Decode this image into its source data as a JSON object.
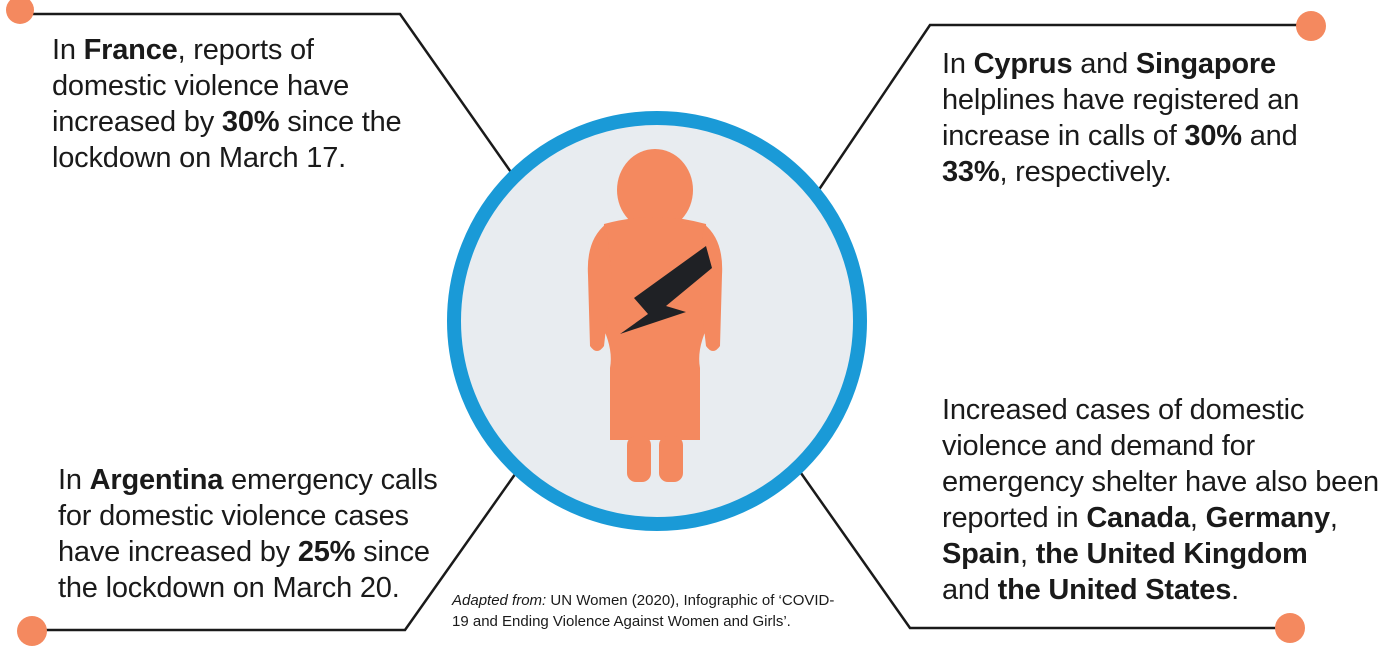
{
  "colors": {
    "connector_line": "#1a1a1a",
    "dot": "#f4895f",
    "ring": "#1a9ad7",
    "circle_fill": "#e8ecf0",
    "figure": "#f4895f",
    "bolt": "#1f2125"
  },
  "icons": {
    "figure": "woman-figure-icon",
    "bolt": "lightning-bolt-icon"
  },
  "blocks": {
    "france": {
      "l1_a": "In ",
      "l1_b": "France",
      "l1_c": ", reports of",
      "l2": "domestic violence have",
      "l3_a": "increased by ",
      "l3_b": "30%",
      "l3_c": " since the",
      "l4": "lockdown on March 17."
    },
    "cyprus": {
      "l1_a": "In ",
      "l1_b": "Cyprus",
      "l1_c": " and ",
      "l1_d": "Singapore",
      "l2": "helplines have registered an",
      "l3_a": "increase in calls of ",
      "l3_b": "30%",
      "l3_c": " and",
      "l4_a": "33%",
      "l4_b": ", respectively."
    },
    "argentina": {
      "l1_a": "In ",
      "l1_b": "Argentina",
      "l1_c": " emergency calls",
      "l2": "for domestic violence cases",
      "l3_a": "have increased by ",
      "l3_b": "25%",
      "l3_c": " since",
      "l4": "the lockdown on March 20."
    },
    "others": {
      "l1": "Increased cases of domestic",
      "l2": "violence and demand for",
      "l3": "emergency shelter have also been",
      "l4_a": "reported in ",
      "l4_b": "Canada",
      "l4_c": ", ",
      "l4_d": "Germany",
      "l4_e": ",",
      "l5_a": "Spain",
      "l5_b": ", ",
      "l5_c": "the United Kingdom",
      "l6_a": "and ",
      "l6_b": "the United States",
      "l6_c": "."
    }
  },
  "caption": {
    "label": "Adapted from:",
    "l1": " UN Women (2020), Infographic of ‘COVID-",
    "l2": "19 and Ending Violence Against Women and Girls’."
  }
}
